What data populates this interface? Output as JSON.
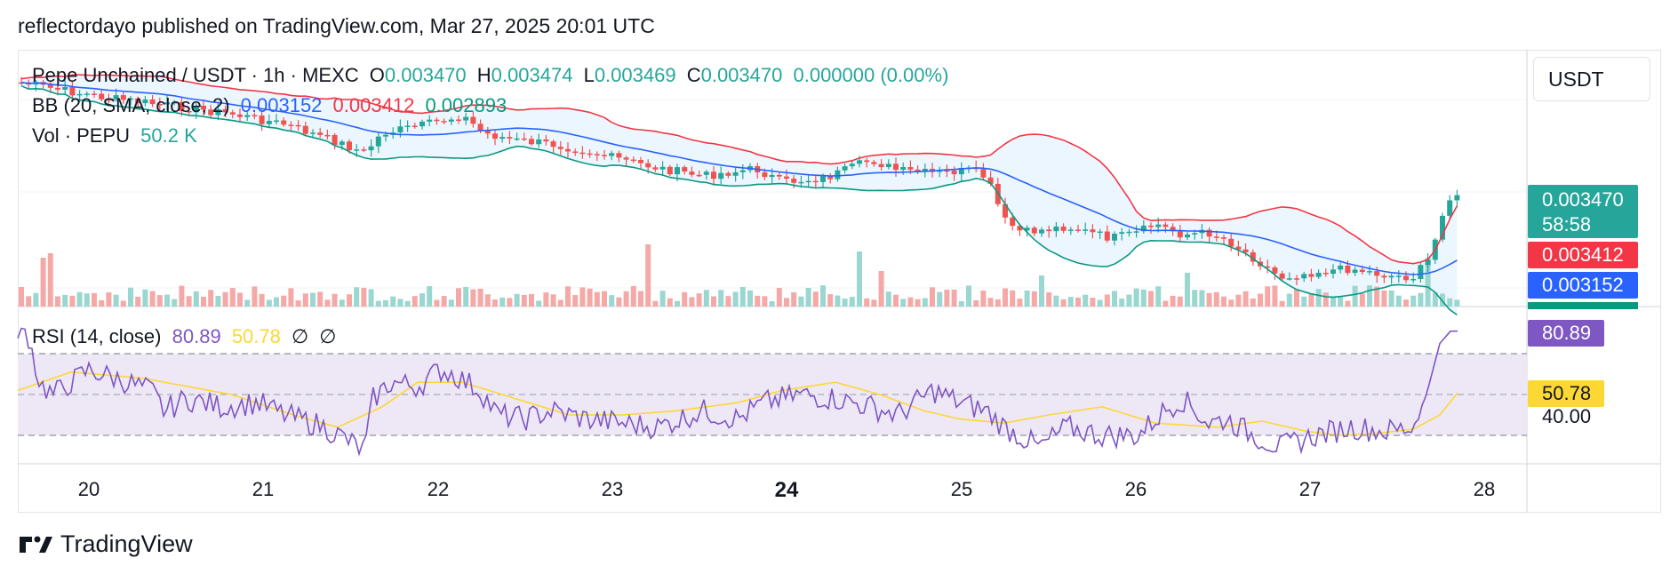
{
  "header": {
    "published": "reflectordayo published on TradingView.com, Mar 27, 2025 20:01 UTC"
  },
  "symbol": {
    "name": "Pepe Unchained / USDT · 1h · MEXC",
    "o_label": "O",
    "o_value": "0.003470",
    "h_label": "H",
    "h_value": "0.003474",
    "l_label": "L",
    "l_value": "0.003469",
    "c_label": "C",
    "c_value": "0.003470",
    "change": "0.000000 (0.00%)"
  },
  "bb_legend": {
    "label": "BB (20, SMA, close, 2)",
    "basis": "0.003152",
    "upper": "0.003412",
    "lower": "0.002893"
  },
  "vol_legend": {
    "label": "Vol · PEPU",
    "value": "50.2 K"
  },
  "rsi_legend": {
    "label": "RSI (14, close)",
    "rsi": "80.89",
    "ma": "50.78",
    "x1": "∅",
    "x2": "∅"
  },
  "price_scale": {
    "currency": "USDT",
    "last_price": "0.003470",
    "countdown": "58:58",
    "bb_upper": "0.003412",
    "bb_basis": "0.003152"
  },
  "rsi_scale": {
    "rsi": "80.89",
    "ma": "50.78",
    "level": "40.00"
  },
  "colors": {
    "up": "#26a69a",
    "down": "#ef5350",
    "bb_upper": "#f23645",
    "bb_basis": "#2962ff",
    "bb_lower": "#089981",
    "bb_fill": "#e3f2fd",
    "rsi_line": "#7e57c2",
    "rsi_ma": "#fdd835",
    "rsi_band": "#ede7f6",
    "vol_up": "#9ad7d0",
    "vol_down": "#f5a9a7"
  },
  "footer": {
    "brand": "TradingView"
  },
  "chart_data": {
    "type": "candlestick",
    "interval": "1h",
    "x_ticks": [
      "20",
      "21",
      "22",
      "23",
      "24",
      "25",
      "26",
      "27",
      "28"
    ],
    "x_tick_bold": "24",
    "rsi_levels": [
      70,
      50,
      30
    ],
    "series": [
      {
        "name": "Pepe Unchained / USDT",
        "price_start": 0.00415,
        "price_end": 0.00347
      },
      {
        "name": "BB upper",
        "value_last": 0.003412
      },
      {
        "name": "BB basis",
        "value_last": 0.003152
      },
      {
        "name": "BB lower",
        "value_last": 0.002893
      },
      {
        "name": "Vol · PEPU",
        "value_last": 50200
      },
      {
        "name": "RSI (14, close)",
        "value_last": 80.89
      },
      {
        "name": "RSI MA",
        "value_last": 50.78
      }
    ]
  }
}
